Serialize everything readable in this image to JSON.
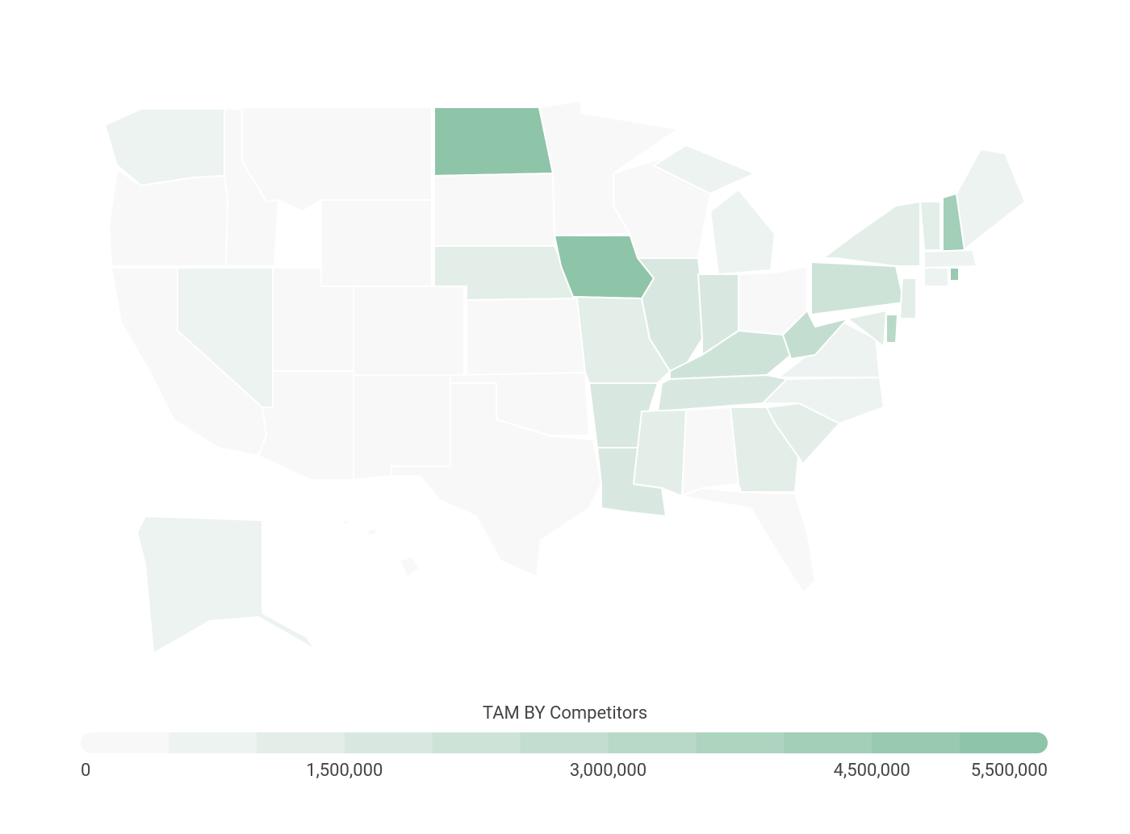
{
  "chart_data": {
    "type": "choropleth",
    "legend_title": "TAM BY Competitors",
    "values": [
      500000,
      0,
      0,
      0,
      0,
      0,
      500000,
      0,
      0,
      0,
      0,
      5000000,
      0,
      1000000,
      0,
      0,
      0,
      0,
      5000000,
      1000000,
      1500000,
      1500000,
      0,
      1500000,
      500000,
      1500000,
      0,
      2000000,
      1500000,
      1000000,
      0,
      1000000,
      0,
      1000000,
      500000,
      500000,
      2500000,
      2000000,
      1000000,
      1000000,
      4000000,
      500000,
      500000,
      500000,
      4500000,
      1000000,
      3000000,
      1000000,
      500000,
      0
    ],
    "zlim": [
      0,
      5500000
    ],
    "zticks": [
      0,
      {
        "value": 1500000,
        "label": "1,500,000"
      },
      {
        "value": 3000000,
        "label": "3,000,000"
      },
      {
        "value": 4500000,
        "label": "4,500,000"
      },
      {
        "value": 5500000,
        "label": "5,500,000"
      }
    ],
    "color_range": [
      "#f8f8f8",
      "#8ec4a8"
    ],
    "color_steps": 11
  }
}
